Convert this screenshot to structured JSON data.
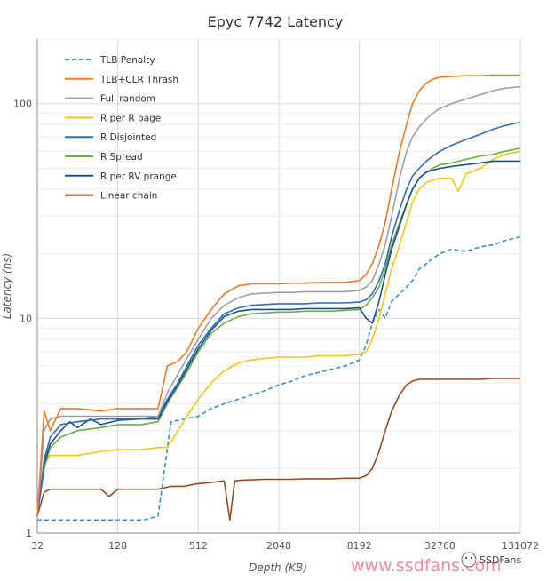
{
  "chart_data": {
    "type": "line",
    "title": "Epyc 7742 Latency",
    "xlabel": "Depth (KB)",
    "ylabel": "Latency (ns)",
    "x_scale": "log2",
    "y_scale": "log10",
    "xlim": [
      32,
      131072
    ],
    "ylim": [
      1,
      200
    ],
    "x_ticks": [
      "32",
      "128",
      "512",
      "2048",
      "8192",
      "32768",
      "131072"
    ],
    "y_ticks": [
      "1",
      "10",
      "100"
    ],
    "grid": true,
    "legend_position": "top-left",
    "series": [
      {
        "name": "TLB Penalty",
        "color": "#3a8fd6",
        "dash": true,
        "x": [
          32,
          40,
          64,
          96,
          128,
          160,
          200,
          256,
          320,
          400,
          512,
          640,
          800,
          1024,
          1280,
          1600,
          2048,
          2560,
          3200,
          4096,
          5120,
          6400,
          8192,
          9200,
          10240,
          11500,
          12800,
          14300,
          16384,
          18500,
          20480,
          23000,
          26000,
          29000,
          32768,
          40000,
          51200,
          65536,
          81920,
          100000,
          131072
        ],
        "y": [
          1.15,
          1.15,
          1.15,
          1.15,
          1.15,
          1.15,
          1.15,
          1.2,
          3.3,
          3.4,
          3.5,
          3.8,
          4.0,
          4.2,
          4.4,
          4.6,
          4.9,
          5.1,
          5.4,
          5.6,
          5.8,
          6.0,
          6.4,
          7.5,
          9.5,
          11,
          10,
          12,
          13,
          14,
          15,
          17,
          18,
          19,
          20,
          21,
          20.5,
          21.5,
          22,
          23,
          24
        ]
      },
      {
        "name": "TLB+CLR Thrash",
        "color": "#f07a26",
        "x": [
          32,
          36,
          40,
          48,
          64,
          96,
          128,
          192,
          256,
          300,
          360,
          420,
          512,
          640,
          800,
          1024,
          1280,
          1600,
          2048,
          2560,
          3200,
          4096,
          5120,
          6400,
          8192,
          9200,
          10240,
          11500,
          12800,
          14300,
          16384,
          18500,
          20480,
          23000,
          26000,
          29000,
          32768,
          40000,
          51200,
          65536,
          81920,
          100000,
          131072
        ],
        "y": [
          1.2,
          3.7,
          3.0,
          3.8,
          3.8,
          3.7,
          3.8,
          3.8,
          3.8,
          6.0,
          6.3,
          7.0,
          9.0,
          11,
          13,
          14.2,
          14.5,
          14.5,
          14.5,
          14.6,
          14.6,
          14.7,
          14.7,
          14.7,
          15,
          16,
          18,
          22,
          28,
          40,
          60,
          80,
          100,
          115,
          125,
          130,
          133,
          134,
          135,
          135,
          136,
          136,
          136
        ]
      },
      {
        "name": "Full random",
        "color": "#a0a0a0",
        "x": [
          32,
          36,
          40,
          48,
          64,
          96,
          128,
          192,
          256,
          300,
          360,
          420,
          512,
          640,
          800,
          1024,
          1280,
          1600,
          2048,
          2560,
          3200,
          4096,
          5120,
          6400,
          8192,
          9200,
          10240,
          11500,
          12800,
          14300,
          16384,
          18500,
          20480,
          23000,
          26000,
          29000,
          32768,
          40000,
          51200,
          65536,
          81920,
          100000,
          131072
        ],
        "y": [
          1.2,
          3.0,
          3.4,
          3.5,
          3.5,
          3.5,
          3.5,
          3.5,
          3.5,
          4.5,
          5.5,
          6.5,
          8.0,
          10,
          11.5,
          12.5,
          13,
          13.1,
          13.2,
          13.2,
          13.3,
          13.3,
          13.3,
          13.3,
          13.5,
          14,
          15,
          18,
          22,
          30,
          45,
          60,
          70,
          78,
          85,
          90,
          95,
          100,
          105,
          110,
          115,
          118,
          120
        ]
      },
      {
        "name": "R per R page",
        "color": "#f5c518",
        "x": [
          32,
          36,
          40,
          48,
          64,
          96,
          128,
          192,
          256,
          300,
          360,
          420,
          512,
          640,
          800,
          1024,
          1280,
          1600,
          2048,
          2560,
          3200,
          4096,
          5120,
          6400,
          8192,
          9200,
          10240,
          11500,
          12800,
          14300,
          16384,
          18500,
          20480,
          23000,
          26000,
          29000,
          32768,
          40000,
          45000,
          51200,
          65536,
          81920,
          100000,
          131072
        ],
        "y": [
          1.2,
          2.1,
          2.3,
          2.3,
          2.3,
          2.4,
          2.45,
          2.45,
          2.5,
          2.5,
          3.0,
          3.5,
          4.2,
          5.0,
          5.7,
          6.2,
          6.4,
          6.5,
          6.6,
          6.6,
          6.6,
          6.7,
          6.7,
          6.7,
          6.8,
          7.0,
          8.0,
          10,
          13,
          17,
          22,
          28,
          35,
          40,
          43,
          44,
          45,
          45,
          39,
          47,
          50,
          55,
          58,
          60
        ]
      },
      {
        "name": "R Disjointed",
        "color": "#2f6eb5",
        "x": [
          32,
          36,
          40,
          48,
          64,
          96,
          128,
          192,
          256,
          300,
          360,
          420,
          512,
          640,
          800,
          1024,
          1280,
          1600,
          2048,
          2560,
          3200,
          4096,
          5120,
          6400,
          8192,
          9200,
          10240,
          11500,
          12800,
          14300,
          16384,
          18500,
          20480,
          23000,
          26000,
          29000,
          32768,
          40000,
          51200,
          65536,
          81920,
          100000,
          131072
        ],
        "y": [
          1.2,
          2.2,
          2.8,
          3.2,
          3.3,
          3.4,
          3.4,
          3.4,
          3.5,
          4.2,
          5.0,
          6.0,
          7.5,
          9.0,
          10.5,
          11.2,
          11.5,
          11.6,
          11.7,
          11.7,
          11.7,
          11.8,
          11.8,
          11.8,
          11.9,
          12.2,
          13,
          15,
          18,
          24,
          32,
          40,
          46,
          50,
          54,
          57,
          60,
          64,
          68,
          72,
          76,
          79,
          82
        ]
      },
      {
        "name": "R Spread",
        "color": "#6aaf44",
        "x": [
          32,
          36,
          40,
          48,
          64,
          96,
          128,
          192,
          256,
          300,
          360,
          420,
          512,
          640,
          800,
          1024,
          1280,
          1600,
          2048,
          2560,
          3200,
          4096,
          5120,
          6400,
          8192,
          9200,
          10240,
          11500,
          12800,
          14300,
          16384,
          18500,
          20480,
          23000,
          26000,
          29000,
          32768,
          40000,
          51200,
          65536,
          81920,
          100000,
          131072
        ],
        "y": [
          1.2,
          2.0,
          2.5,
          2.8,
          3.0,
          3.1,
          3.2,
          3.2,
          3.3,
          4.0,
          4.8,
          5.6,
          7.0,
          8.5,
          9.5,
          10.2,
          10.5,
          10.6,
          10.7,
          10.7,
          10.8,
          10.8,
          10.8,
          10.9,
          11,
          11.5,
          12.5,
          14,
          17,
          22,
          28,
          34,
          40,
          45,
          48,
          50,
          52,
          53,
          55,
          57,
          58,
          60,
          62
        ]
      },
      {
        "name": "R per RV prange",
        "color": "#1f4f8f",
        "x": [
          32,
          36,
          40,
          48,
          56,
          64,
          80,
          96,
          128,
          192,
          256,
          300,
          360,
          420,
          512,
          640,
          800,
          1024,
          1280,
          1600,
          2048,
          2560,
          3200,
          4096,
          5120,
          6400,
          8192,
          9200,
          10240,
          11500,
          12800,
          14300,
          16384,
          18500,
          20480,
          23000,
          26000,
          29000,
          32768,
          40000,
          51200,
          65536,
          81920,
          100000,
          131072
        ],
        "y": [
          1.2,
          2.1,
          2.6,
          3.0,
          3.3,
          3.1,
          3.4,
          3.2,
          3.35,
          3.4,
          3.4,
          4.1,
          4.9,
          5.8,
          7.2,
          8.8,
          10.2,
          10.8,
          11.0,
          11.0,
          11.0,
          11.0,
          11.1,
          11.1,
          11.1,
          11.1,
          11.2,
          10.0,
          9.5,
          12,
          16,
          21,
          27,
          34,
          40,
          45,
          48,
          49,
          50,
          51,
          52,
          53,
          54,
          54,
          54
        ]
      },
      {
        "name": "Linear chain",
        "color": "#9a4a22",
        "x": [
          32,
          36,
          40,
          48,
          64,
          96,
          110,
          128,
          192,
          256,
          320,
          400,
          512,
          640,
          800,
          880,
          960,
          1024,
          1280,
          1600,
          2048,
          2560,
          3200,
          4096,
          5120,
          6400,
          8192,
          9200,
          10240,
          11500,
          12800,
          14300,
          16384,
          18500,
          20480,
          23000,
          26000,
          29000,
          32768,
          40000,
          51200,
          65536,
          81920,
          100000,
          131072
        ],
        "y": [
          1.2,
          1.55,
          1.6,
          1.6,
          1.6,
          1.6,
          1.48,
          1.6,
          1.6,
          1.6,
          1.65,
          1.65,
          1.7,
          1.72,
          1.75,
          1.15,
          1.75,
          1.76,
          1.77,
          1.78,
          1.78,
          1.78,
          1.79,
          1.79,
          1.79,
          1.8,
          1.8,
          1.85,
          2.0,
          2.4,
          3.0,
          3.7,
          4.4,
          4.9,
          5.1,
          5.2,
          5.2,
          5.2,
          5.2,
          5.2,
          5.2,
          5.2,
          5.25,
          5.25,
          5.25
        ]
      }
    ]
  },
  "watermark": {
    "site": "www.ssdfans.com",
    "brand": "SSDFans"
  }
}
